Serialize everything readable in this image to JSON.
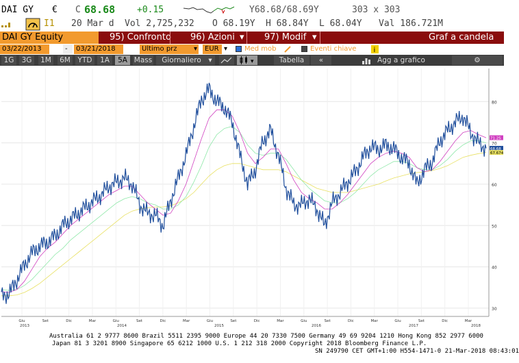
{
  "quote": {
    "ticker": "DAI GY",
    "currency": "€",
    "last_prefix": "C",
    "last": "68.68",
    "change": "+0.15",
    "bid_ask": "Y68.68/68.69Y",
    "size": "303 x 303",
    "index_label": "I1",
    "date": "20 Mar d",
    "volume": "Vol 2,725,232",
    "open": "O 68.19Y",
    "high": "H 68.84Y",
    "low": "L 68.04Y",
    "value": "Val 186.721M"
  },
  "function_bar": {
    "security": "DAI GY Equity",
    "compare": "95) Confronto",
    "actions": "96) Azioni",
    "edit": "97) Modif",
    "title": "Graf a candela"
  },
  "date_row": {
    "start_date": "03/22/2013",
    "separator": "-",
    "end_date": "03/21/2018",
    "price_type": "Ultimo prz",
    "currency": "EUR",
    "moving_avg": "Med mob",
    "events": "Eventi chiave"
  },
  "toolbar": {
    "ranges": [
      "1G",
      "3G",
      "1M",
      "6M",
      "YTD",
      "1A",
      "5A",
      "Mass"
    ],
    "active_range": "5A",
    "frequency": "Giornaliero",
    "table": "Tabella",
    "add_to_chart": "Agg a grafico"
  },
  "chart_data": {
    "type": "line",
    "title": "",
    "xlabel": "",
    "ylabel": "",
    "ylim": [
      28,
      88
    ],
    "yticks": [
      30,
      40,
      50,
      60,
      70,
      80
    ],
    "x_month_labels": [
      "Giu",
      "Set",
      "Dic",
      "Mar",
      "Giu",
      "Set",
      "Dic",
      "Mar",
      "Giu",
      "Set",
      "Dic",
      "Mar",
      "Giu",
      "Set",
      "Dic",
      "Mar",
      "Giu",
      "Set",
      "Dic",
      "Mar"
    ],
    "x_year_labels": [
      "2013",
      "2014",
      "2015",
      "2016",
      "2017",
      "2018"
    ],
    "series": [
      {
        "color": "#1f4e9c",
        "values": [
          33.0,
          33.5,
          36.8,
          40.5,
          43.5,
          45.0,
          46.0,
          47.5,
          50.0,
          51.5,
          53.0,
          54.5,
          56.0,
          57.5,
          59.5,
          60.5,
          61.5,
          60.0,
          55.0,
          53.0,
          52.5,
          50.0,
          56.0,
          61.5,
          67.0,
          74.0,
          80.5,
          83.0,
          80.0,
          78.5,
          75.0,
          67.0,
          60.0,
          63.5,
          70.5,
          73.0,
          67.0,
          59.0,
          55.0,
          55.0,
          56.5,
          54.0,
          50.0,
          55.5,
          58.0,
          60.5,
          63.0,
          66.5,
          69.0,
          68.5,
          69.5,
          68.5,
          66.5,
          65.0,
          60.0,
          63.5,
          65.5,
          70.5,
          73.0,
          75.0,
          76.5,
          72.5,
          70.0,
          68.68
        ]
      },
      {
        "color": "#d040c0",
        "values": [
          34.0,
          33.8,
          34.5,
          36.5,
          39.5,
          42.5,
          44.5,
          46.0,
          48.0,
          50.0,
          51.5,
          53.0,
          54.5,
          56.0,
          57.5,
          58.5,
          59.5,
          59.5,
          57.5,
          55.5,
          54.0,
          52.5,
          53.0,
          56.0,
          60.0,
          65.5,
          71.0,
          76.0,
          78.0,
          78.0,
          76.5,
          72.5,
          67.5,
          65.0,
          66.5,
          68.5,
          68.5,
          65.0,
          61.0,
          58.0,
          56.5,
          55.5,
          54.0,
          54.0,
          55.5,
          57.5,
          60.0,
          62.5,
          65.0,
          66.5,
          67.5,
          68.0,
          67.5,
          66.5,
          64.0,
          63.0,
          63.5,
          65.5,
          68.0,
          70.5,
          72.5,
          73.0,
          72.0,
          71.25
        ]
      },
      {
        "color": "#8ee8a8",
        "values": [
          34.5,
          34.3,
          34.5,
          35.5,
          37.0,
          39.0,
          41.0,
          43.0,
          44.5,
          46.5,
          48.0,
          49.5,
          51.0,
          52.5,
          54.0,
          55.5,
          56.5,
          57.0,
          56.5,
          55.5,
          55.0,
          54.0,
          54.0,
          55.0,
          57.0,
          60.5,
          64.5,
          69.0,
          72.0,
          73.5,
          74.0,
          72.5,
          69.5,
          67.5,
          67.0,
          67.5,
          67.5,
          66.0,
          63.5,
          61.0,
          59.0,
          57.5,
          56.0,
          55.5,
          55.5,
          56.5,
          58.0,
          60.0,
          62.0,
          63.5,
          64.5,
          65.5,
          65.5,
          65.0,
          64.0,
          63.5,
          63.5,
          64.5,
          66.0,
          68.0,
          69.5,
          70.5,
          70.5,
          70.0
        ]
      },
      {
        "color": "#e8e060",
        "values": [
          33.0,
          33.0,
          33.2,
          33.8,
          34.8,
          36.0,
          37.5,
          39.0,
          40.5,
          42.0,
          43.5,
          45.0,
          46.5,
          48.0,
          49.5,
          51.0,
          52.5,
          53.5,
          54.0,
          54.3,
          54.5,
          54.5,
          54.8,
          55.5,
          56.5,
          58.0,
          60.0,
          62.0,
          63.5,
          64.5,
          65.0,
          65.0,
          64.5,
          64.0,
          63.5,
          63.5,
          63.5,
          63.0,
          62.0,
          61.0,
          60.0,
          59.0,
          58.5,
          58.0,
          58.0,
          58.0,
          58.5,
          59.0,
          59.5,
          60.0,
          60.8,
          61.5,
          62.0,
          62.5,
          62.8,
          63.0,
          63.3,
          63.8,
          64.5,
          65.5,
          66.5,
          67.0,
          67.4,
          67.674
        ]
      }
    ],
    "price_labels": [
      {
        "text": "71.25",
        "value": 71.25,
        "color": "#d040c0"
      },
      {
        "text": "68.68",
        "value": 68.68,
        "color": "#1f4e9c"
      },
      {
        "text": "67.674",
        "value": 67.674,
        "color": "#e8e060"
      }
    ]
  },
  "footer": {
    "line1": "Australia 61 2 9777 8600 Brazil 5511 2395 9000 Europe 44 20 7330 7500 Germany 49 69 9204 1210 Hong Kong 852 2977 6000",
    "line2": "Japan 81 3 3201 8900      Singapore 65 6212 1000      U.S. 1 212 318 2000           Copyright 2018 Bloomberg Finance L.P.",
    "line3": "SN 249790 CET  GMT+1:00 H554-1471-0 21-Mar-2018 08:43:01"
  },
  "colors": {
    "function_bar": "#8a0d0d",
    "orange": "#f29a2e",
    "toolbar": "#3c3c3c",
    "price_line": "#1f4e9c"
  }
}
